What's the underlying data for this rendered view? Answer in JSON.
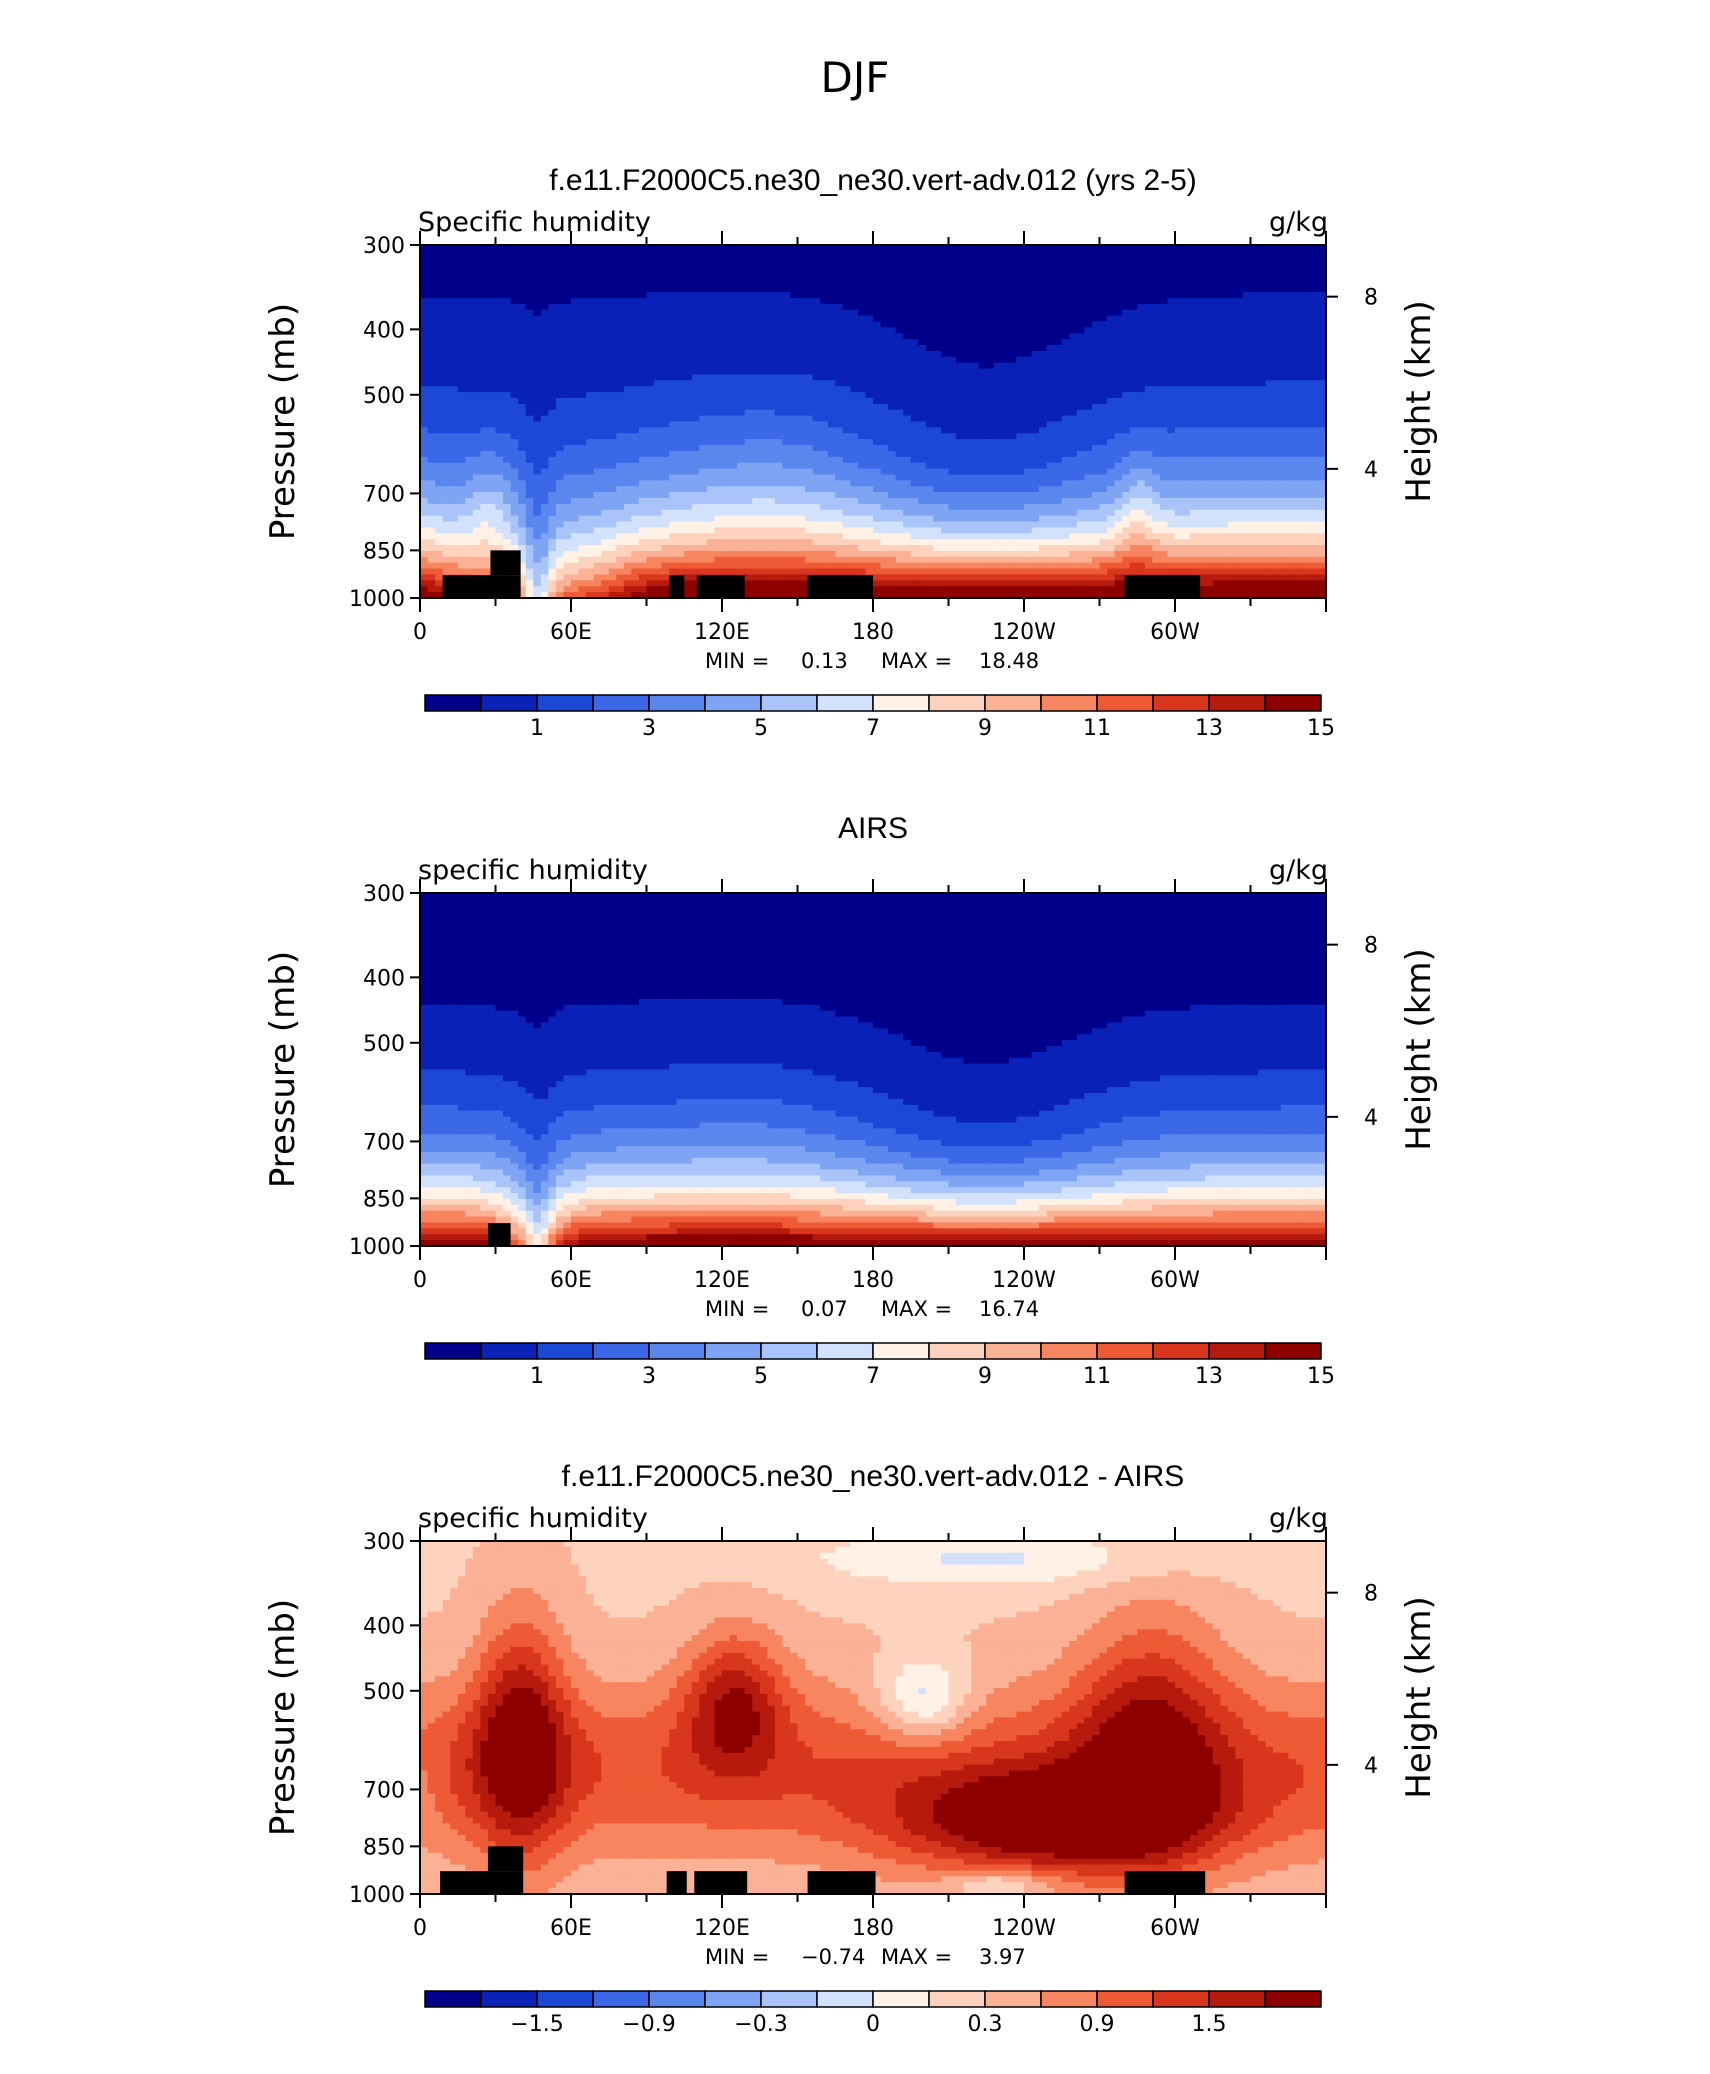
{
  "title": "DJF",
  "colors": {
    "abs_palette": [
      "#00008a",
      "#0a21b8",
      "#1c48d8",
      "#3a68e6",
      "#5a87ee",
      "#7ea4f3",
      "#a8c4f8",
      "#d3e2fc",
      "#fff1e6",
      "#fdd3bd",
      "#fbb196",
      "#f7855f",
      "#ee5a35",
      "#d8361d",
      "#b51a0c",
      "#8c0000"
    ],
    "diff_palette": [
      "#00008a",
      "#0a21b8",
      "#1c48d8",
      "#3a68e6",
      "#5a87ee",
      "#7ea4f3",
      "#a8c4f8",
      "#d3e2fc",
      "#fff1e6",
      "#fdd3bd",
      "#fbb196",
      "#f7855f",
      "#ee5a35",
      "#d8361d",
      "#b51a0c",
      "#8c0000"
    ],
    "land": "#000000"
  },
  "chart_data": [
    {
      "type": "heatmap",
      "title": "f.e11.F2000C5.ne30_ne30.vert-adv.012 (yrs 2-5)",
      "left_label": "Specific humidity",
      "right_label": "g/kg",
      "ylabel": "Pressure (mb)",
      "ylabel2": "Height (km)",
      "x_ticks": [
        "0",
        "60E",
        "120E",
        "180",
        "120W",
        "60W"
      ],
      "x_tick_values": [
        0,
        60,
        120,
        180,
        240,
        300
      ],
      "xlim": [
        0,
        360
      ],
      "y_ticks": [
        "300",
        "400",
        "500",
        "700",
        "850",
        "1000"
      ],
      "y_tick_values": [
        300,
        400,
        500,
        700,
        850,
        1000
      ],
      "ylim": [
        1000,
        300
      ],
      "y_scale": "log",
      "y2_ticks": [
        "8",
        "4"
      ],
      "y2_tick_values": [
        8,
        4
      ],
      "stats": {
        "min_label": "MIN =",
        "min": "0.13",
        "max_label": "MAX =",
        "max": "18.48"
      },
      "colorbar_labels": [
        "1",
        "3",
        "5",
        "7",
        "9",
        "11",
        "13",
        "15"
      ],
      "colorbar_levels": [
        0,
        1,
        2,
        3,
        4,
        5,
        6,
        7,
        8,
        9,
        10,
        11,
        12,
        13,
        14,
        15,
        16
      ],
      "field": "humidity_model",
      "land_blocks": [
        {
          "lon": [
            9,
            40
          ],
          "p": [
            925,
            1000
          ]
        },
        {
          "lon": [
            28,
            40
          ],
          "p": [
            850,
            925
          ]
        },
        {
          "lon": [
            99,
            105
          ],
          "p": [
            925,
            1000
          ]
        },
        {
          "lon": [
            110,
            129
          ],
          "p": [
            925,
            1000
          ]
        },
        {
          "lon": [
            154,
            180
          ],
          "p": [
            925,
            1000
          ]
        },
        {
          "lon": [
            280,
            310
          ],
          "p": [
            925,
            1000
          ]
        }
      ]
    },
    {
      "type": "heatmap",
      "title": "AIRS",
      "left_label": "specific humidity",
      "right_label": "g/kg",
      "ylabel": "Pressure (mb)",
      "ylabel2": "Height (km)",
      "x_ticks": [
        "0",
        "60E",
        "120E",
        "180",
        "120W",
        "60W"
      ],
      "x_tick_values": [
        0,
        60,
        120,
        180,
        240,
        300
      ],
      "xlim": [
        0,
        360
      ],
      "y_ticks": [
        "300",
        "400",
        "500",
        "700",
        "850",
        "1000"
      ],
      "y_tick_values": [
        300,
        400,
        500,
        700,
        850,
        1000
      ],
      "ylim": [
        1000,
        300
      ],
      "y_scale": "log",
      "y2_ticks": [
        "8",
        "4"
      ],
      "y2_tick_values": [
        8,
        4
      ],
      "stats": {
        "min_label": "MIN =",
        "min": "0.07",
        "max_label": "MAX =",
        "max": "16.74"
      },
      "colorbar_labels": [
        "1",
        "3",
        "5",
        "7",
        "9",
        "11",
        "13",
        "15"
      ],
      "colorbar_levels": [
        0,
        1,
        2,
        3,
        4,
        5,
        6,
        7,
        8,
        9,
        10,
        11,
        12,
        13,
        14,
        15,
        16
      ],
      "field": "humidity_obs",
      "land_blocks": [
        {
          "lon": [
            27,
            36
          ],
          "p": [
            925,
            1000
          ]
        }
      ]
    },
    {
      "type": "heatmap",
      "title": "f.e11.F2000C5.ne30_ne30.vert-adv.012 - AIRS",
      "left_label": "specific humidity",
      "right_label": "g/kg",
      "ylabel": "Pressure (mb)",
      "ylabel2": "Height (km)",
      "x_ticks": [
        "0",
        "60E",
        "120E",
        "180",
        "120W",
        "60W"
      ],
      "x_tick_values": [
        0,
        60,
        120,
        180,
        240,
        300
      ],
      "xlim": [
        0,
        360
      ],
      "y_ticks": [
        "300",
        "400",
        "500",
        "700",
        "850",
        "1000"
      ],
      "y_tick_values": [
        300,
        400,
        500,
        700,
        850,
        1000
      ],
      "ylim": [
        1000,
        300
      ],
      "y_scale": "log",
      "y2_ticks": [
        "8",
        "4"
      ],
      "y2_tick_values": [
        8,
        4
      ],
      "stats": {
        "min_label": "MIN =",
        "min": "−0.74",
        "max_label": "MAX =",
        "max": "3.97"
      },
      "colorbar_labels": [
        "−1.5",
        "−0.9",
        "−0.3",
        "0",
        "0.3",
        "0.9",
        "1.5"
      ],
      "colorbar_levels": [
        -2.4,
        -2.1,
        -1.8,
        -1.5,
        -1.2,
        -0.9,
        -0.6,
        -0.3,
        0,
        0.3,
        0.6,
        0.9,
        1.2,
        1.5,
        1.8,
        2.1,
        2.4
      ],
      "field": "humidity_diff",
      "land_blocks": [
        {
          "lon": [
            8,
            41
          ],
          "p": [
            925,
            1000
          ]
        },
        {
          "lon": [
            27,
            41
          ],
          "p": [
            850,
            925
          ]
        },
        {
          "lon": [
            98,
            106
          ],
          "p": [
            925,
            1000
          ]
        },
        {
          "lon": [
            109,
            130
          ],
          "p": [
            925,
            1000
          ]
        },
        {
          "lon": [
            154,
            181
          ],
          "p": [
            925,
            1000
          ]
        },
        {
          "lon": [
            280,
            312
          ],
          "p": [
            925,
            1000
          ]
        }
      ]
    }
  ]
}
